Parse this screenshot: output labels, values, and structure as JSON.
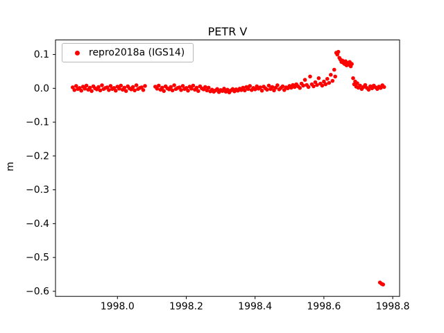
{
  "chart_data": {
    "type": "scatter",
    "title": "PETR V",
    "xlabel": "",
    "ylabel": "m",
    "xlim": [
      1997.82,
      1998.82
    ],
    "ylim": [
      -0.615,
      0.143
    ],
    "xticks": [
      1998.0,
      1998.2,
      1998.4,
      1998.6,
      1998.8
    ],
    "xtick_labels": [
      "1998.0",
      "1998.2",
      "1998.4",
      "1998.6",
      "1998.8"
    ],
    "yticks": [
      0.1,
      0.0,
      -0.1,
      -0.2,
      -0.3,
      -0.4,
      -0.5,
      -0.6
    ],
    "ytick_labels": [
      "0.1",
      "0.0",
      "−0.1",
      "−0.2",
      "−0.3",
      "−0.4",
      "−0.5",
      "−0.6"
    ],
    "grid": false,
    "legend_position": "upper left",
    "marker_size_px": 2.8,
    "series": [
      {
        "name": "repro2018a (IGS14)",
        "color": "#ff0000",
        "marker": "circle",
        "points": [
          [
            1997.87,
            0.003
          ],
          [
            1997.875,
            -0.005
          ],
          [
            1997.88,
            0.007
          ],
          [
            1997.885,
            -0.002
          ],
          [
            1997.89,
            0.001
          ],
          [
            1997.895,
            -0.007
          ],
          [
            1997.9,
            0.005
          ],
          [
            1997.905,
            -0.001
          ],
          [
            1997.91,
            0.008
          ],
          [
            1997.915,
            -0.004
          ],
          [
            1997.92,
            0.002
          ],
          [
            1997.925,
            -0.008
          ],
          [
            1997.93,
            0.006
          ],
          [
            1997.935,
            0.0
          ],
          [
            1997.94,
            -0.003
          ],
          [
            1997.945,
            0.004
          ],
          [
            1997.95,
            -0.006
          ],
          [
            1997.955,
            0.009
          ],
          [
            1997.96,
            -0.002
          ],
          [
            1997.965,
            0.001
          ],
          [
            1997.97,
            0.003
          ],
          [
            1997.975,
            -0.005
          ],
          [
            1997.98,
            0.007
          ],
          [
            1997.985,
            -0.002
          ],
          [
            1997.99,
            0.001
          ],
          [
            1997.995,
            -0.007
          ],
          [
            1998.0,
            0.005
          ],
          [
            1998.005,
            -0.001
          ],
          [
            1998.01,
            0.008
          ],
          [
            1998.015,
            -0.004
          ],
          [
            1998.02,
            0.002
          ],
          [
            1998.025,
            -0.008
          ],
          [
            1998.03,
            0.006
          ],
          [
            1998.035,
            0.0
          ],
          [
            1998.04,
            -0.003
          ],
          [
            1998.045,
            0.004
          ],
          [
            1998.05,
            -0.006
          ],
          [
            1998.055,
            0.009
          ],
          [
            1998.06,
            -0.002
          ],
          [
            1998.065,
            0.001
          ],
          [
            1998.07,
            0.003
          ],
          [
            1998.075,
            -0.005
          ],
          [
            1998.08,
            0.007
          ],
          [
            1998.11,
            0.005
          ],
          [
            1998.115,
            -0.001
          ],
          [
            1998.12,
            0.008
          ],
          [
            1998.125,
            -0.004
          ],
          [
            1998.13,
            0.002
          ],
          [
            1998.135,
            -0.008
          ],
          [
            1998.14,
            0.006
          ],
          [
            1998.145,
            0.0
          ],
          [
            1998.15,
            -0.003
          ],
          [
            1998.155,
            0.004
          ],
          [
            1998.16,
            -0.006
          ],
          [
            1998.165,
            0.009
          ],
          [
            1998.17,
            -0.002
          ],
          [
            1998.175,
            0.001
          ],
          [
            1998.18,
            0.003
          ],
          [
            1998.185,
            -0.005
          ],
          [
            1998.19,
            0.007
          ],
          [
            1998.195,
            -0.002
          ],
          [
            1998.2,
            0.001
          ],
          [
            1998.205,
            -0.007
          ],
          [
            1998.21,
            0.005
          ],
          [
            1998.215,
            -0.001
          ],
          [
            1998.22,
            0.008
          ],
          [
            1998.225,
            -0.004
          ],
          [
            1998.23,
            0.002
          ],
          [
            1998.235,
            -0.008
          ],
          [
            1998.24,
            0.006
          ],
          [
            1998.245,
            0.0
          ],
          [
            1998.25,
            -0.003
          ],
          [
            1998.255,
            0.004
          ],
          [
            1998.26,
            -0.006
          ],
          [
            1998.265,
            0.002
          ],
          [
            1998.27,
            -0.009
          ],
          [
            1998.275,
            -0.004
          ],
          [
            1998.28,
            -0.01
          ],
          [
            1998.285,
            -0.006
          ],
          [
            1998.29,
            -0.002
          ],
          [
            1998.295,
            -0.011
          ],
          [
            1998.3,
            -0.005
          ],
          [
            1998.305,
            -0.008
          ],
          [
            1998.31,
            -0.001
          ],
          [
            1998.315,
            -0.01
          ],
          [
            1998.32,
            -0.004
          ],
          [
            1998.325,
            -0.012
          ],
          [
            1998.33,
            -0.006
          ],
          [
            1998.335,
            -0.002
          ],
          [
            1998.34,
            -0.009
          ],
          [
            1998.345,
            -0.003
          ],
          [
            1998.35,
            -0.007
          ],
          [
            1998.355,
            -0.001
          ],
          [
            1998.36,
            -0.005
          ],
          [
            1998.365,
            0.002
          ],
          [
            1998.37,
            -0.006
          ],
          [
            1998.375,
            0.004
          ],
          [
            1998.38,
            -0.002
          ],
          [
            1998.385,
            0.007
          ],
          [
            1998.39,
            -0.005
          ],
          [
            1998.395,
            0.001
          ],
          [
            1998.4,
            -0.003
          ],
          [
            1998.405,
            0.006
          ],
          [
            1998.41,
            -0.001
          ],
          [
            1998.415,
            0.003
          ],
          [
            1998.42,
            -0.007
          ],
          [
            1998.425,
            0.005
          ],
          [
            1998.43,
            0.0
          ],
          [
            1998.435,
            -0.004
          ],
          [
            1998.44,
            0.008
          ],
          [
            1998.445,
            -0.002
          ],
          [
            1998.45,
            0.004
          ],
          [
            1998.455,
            -0.006
          ],
          [
            1998.46,
            0.002
          ],
          [
            1998.465,
            0.009
          ],
          [
            1998.47,
            -0.003
          ],
          [
            1998.475,
            0.001
          ],
          [
            1998.48,
            0.006
          ],
          [
            1998.485,
            -0.005
          ],
          [
            1998.49,
            0.003
          ],
          [
            1998.495,
            0.0
          ],
          [
            1998.5,
            0.007
          ],
          [
            1998.505,
            0.002
          ],
          [
            1998.51,
            0.01
          ],
          [
            1998.515,
            0.004
          ],
          [
            1998.52,
            0.012
          ],
          [
            1998.525,
            0.006
          ],
          [
            1998.53,
            0.001
          ],
          [
            1998.535,
            0.014
          ],
          [
            1998.54,
            0.008
          ],
          [
            1998.545,
            0.025
          ],
          [
            1998.55,
            0.01
          ],
          [
            1998.555,
            0.004
          ],
          [
            1998.56,
            0.035
          ],
          [
            1998.565,
            0.012
          ],
          [
            1998.57,
            0.006
          ],
          [
            1998.575,
            0.018
          ],
          [
            1998.58,
            0.01
          ],
          [
            1998.585,
            0.03
          ],
          [
            1998.59,
            0.014
          ],
          [
            1998.595,
            0.008
          ],
          [
            1998.6,
            0.02
          ],
          [
            1998.605,
            0.012
          ],
          [
            1998.61,
            0.028
          ],
          [
            1998.615,
            0.016
          ],
          [
            1998.62,
            0.04
          ],
          [
            1998.625,
            0.022
          ],
          [
            1998.63,
            0.055
          ],
          [
            1998.633,
            0.035
          ],
          [
            1998.636,
            0.105
          ],
          [
            1998.639,
            0.1
          ],
          [
            1998.642,
            0.108
          ],
          [
            1998.645,
            0.09
          ],
          [
            1998.648,
            0.085
          ],
          [
            1998.651,
            0.078
          ],
          [
            1998.654,
            0.082
          ],
          [
            1998.657,
            0.075
          ],
          [
            1998.66,
            0.072
          ],
          [
            1998.663,
            0.08
          ],
          [
            1998.666,
            0.068
          ],
          [
            1998.669,
            0.075
          ],
          [
            1998.672,
            0.07
          ],
          [
            1998.675,
            0.078
          ],
          [
            1998.678,
            0.065
          ],
          [
            1998.681,
            0.072
          ],
          [
            1998.685,
            0.03
          ],
          [
            1998.688,
            0.012
          ],
          [
            1998.691,
            0.02
          ],
          [
            1998.694,
            0.005
          ],
          [
            1998.697,
            0.015
          ],
          [
            1998.7,
            0.002
          ],
          [
            1998.705,
            0.008
          ],
          [
            1998.71,
            -0.002
          ],
          [
            1998.715,
            0.004
          ],
          [
            1998.72,
            0.01
          ],
          [
            1998.725,
            0.001
          ],
          [
            1998.73,
            -0.004
          ],
          [
            1998.735,
            0.006
          ],
          [
            1998.74,
            0.0
          ],
          [
            1998.745,
            0.008
          ],
          [
            1998.75,
            0.003
          ],
          [
            1998.755,
            -0.002
          ],
          [
            1998.76,
            0.005
          ],
          [
            1998.765,
            0.001
          ],
          [
            1998.77,
            0.009
          ],
          [
            1998.775,
            0.004
          ],
          [
            1998.763,
            -0.574
          ],
          [
            1998.768,
            -0.578
          ],
          [
            1998.772,
            -0.58
          ]
        ]
      }
    ]
  }
}
